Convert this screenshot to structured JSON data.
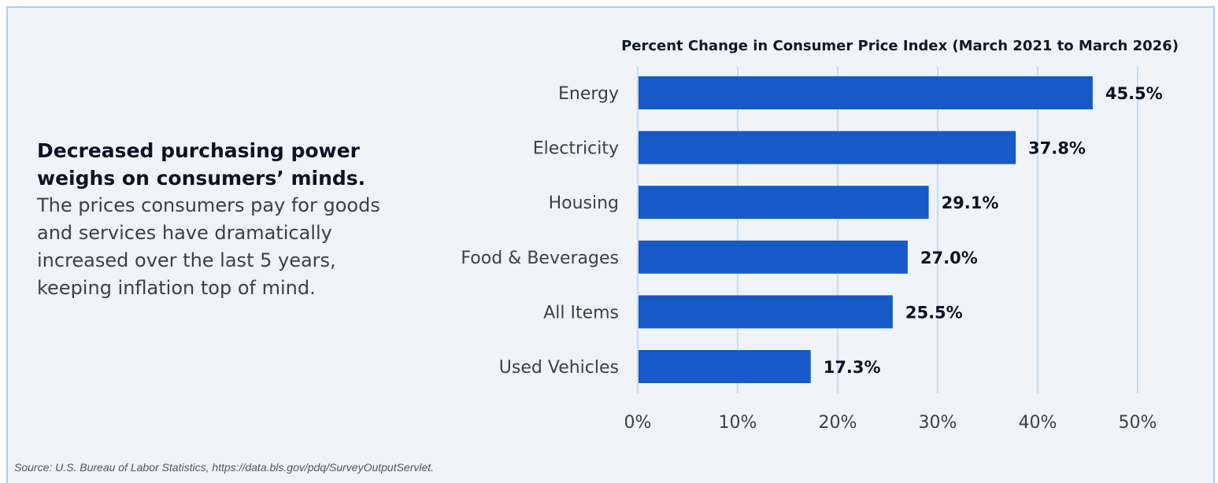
{
  "headline": "Decreased purchasing power weighs on consumers’ minds.",
  "body_text": "The prices consumers pay for goods and services have dramatically increased over the last 5 years, keeping inflation top of mind.",
  "source": "Source: U.S. Bureau of Labor Statistics, https://data.bls.gov/pdq/SurveyOutputServlet.",
  "colors": {
    "bar": "#1659c7",
    "gridline": "#b9d3f2",
    "panel": "#f0f4f8",
    "border": "#aecdf3"
  },
  "chart_data": {
    "type": "bar",
    "orientation": "horizontal",
    "title": "Percent Change in Consumer Price Index (March 2021 to March 2026)",
    "xlabel": "",
    "ylabel": "",
    "categories": [
      "Energy",
      "Electricity",
      "Housing",
      "Food & Beverages",
      "All Items",
      "Used Vehicles"
    ],
    "values": [
      45.5,
      37.8,
      29.1,
      27.0,
      25.5,
      17.3
    ],
    "value_labels": [
      "45.5%",
      "37.8%",
      "29.1%",
      "27.0%",
      "25.5%",
      "17.3%"
    ],
    "xlim": [
      0,
      50
    ],
    "xticks": [
      "0%",
      "10%",
      "20%",
      "30%",
      "40%",
      "50%"
    ],
    "grid": "vertical",
    "legend": "none"
  }
}
